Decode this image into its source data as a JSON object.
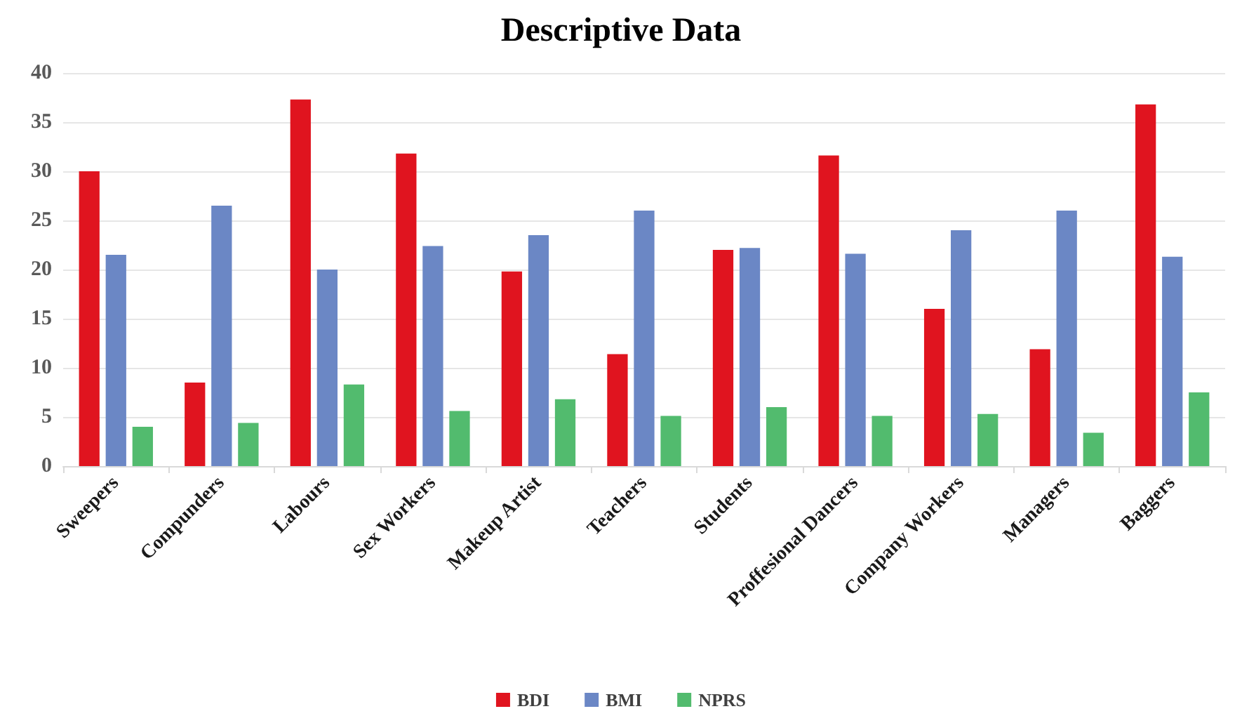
{
  "chart_data": {
    "type": "bar",
    "title": "Descriptive Data",
    "categories": [
      "Sweepers",
      "Compunders",
      "Labours",
      "Sex Workers",
      "Makeup Artist",
      "Teachers",
      "Students",
      "Proffesional Dancers",
      "Company Workers",
      "Managers",
      "Baggers"
    ],
    "series": [
      {
        "name": "BDI",
        "color": "#e0141f",
        "values": [
          30,
          8.5,
          37.3,
          31.8,
          19.8,
          11.4,
          22,
          31.6,
          16,
          11.9,
          36.8
        ]
      },
      {
        "name": "BMI",
        "color": "#6b87c5",
        "values": [
          21.5,
          26.5,
          20,
          22.4,
          23.5,
          26,
          22.2,
          21.6,
          24,
          26,
          21.3
        ]
      },
      {
        "name": "NPRS",
        "color": "#52bb6e",
        "values": [
          4,
          4.4,
          8.3,
          5.6,
          6.8,
          5.1,
          6,
          5.1,
          5.3,
          3.4,
          7.5
        ]
      }
    ],
    "ylim": [
      0,
      40
    ],
    "yticks": [
      0,
      5,
      10,
      15,
      20,
      25,
      30,
      35,
      40
    ],
    "grid": "y",
    "legend": "bottom"
  }
}
